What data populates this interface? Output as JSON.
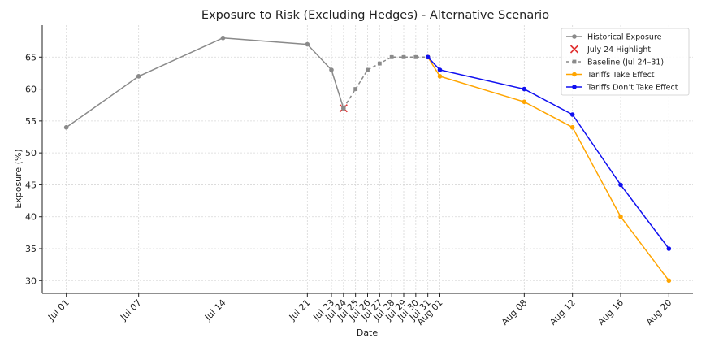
{
  "chart_data": {
    "type": "line",
    "title": "Exposure to Risk (Excluding Hedges) - Alternative Scenario",
    "xlabel": "Date",
    "ylabel": "Exposure (%)",
    "ylim": [
      28,
      70
    ],
    "xlim": [
      "2025-06-29",
      "2025-08-22"
    ],
    "grid": true,
    "legend_position": "top-right",
    "yticks": [
      30,
      35,
      40,
      45,
      50,
      55,
      60,
      65
    ],
    "xticks": [
      {
        "date": "2025-07-01",
        "label": "Jul 01"
      },
      {
        "date": "2025-07-07",
        "label": "Jul 07"
      },
      {
        "date": "2025-07-14",
        "label": "Jul 14"
      },
      {
        "date": "2025-07-21",
        "label": "Jul 21"
      },
      {
        "date": "2025-07-23",
        "label": "Jul 23"
      },
      {
        "date": "2025-07-24",
        "label": "Jul 24"
      },
      {
        "date": "2025-07-25",
        "label": "Jul 25"
      },
      {
        "date": "2025-07-26",
        "label": "Jul 26"
      },
      {
        "date": "2025-07-27",
        "label": "Jul 27"
      },
      {
        "date": "2025-07-28",
        "label": "Jul 28"
      },
      {
        "date": "2025-07-29",
        "label": "Jul 29"
      },
      {
        "date": "2025-07-30",
        "label": "Jul 30"
      },
      {
        "date": "2025-07-31",
        "label": "Jul 31"
      },
      {
        "date": "2025-08-01",
        "label": "Aug 01"
      },
      {
        "date": "2025-08-08",
        "label": "Aug 08"
      },
      {
        "date": "2025-08-12",
        "label": "Aug 12"
      },
      {
        "date": "2025-08-16",
        "label": "Aug 16"
      },
      {
        "date": "2025-08-20",
        "label": "Aug 20"
      }
    ],
    "series": [
      {
        "name": "Historical Exposure",
        "color": "#8a8a8a",
        "line_style": "solid",
        "marker": "circle",
        "points": [
          {
            "x": "2025-07-01",
            "y": 54
          },
          {
            "x": "2025-07-07",
            "y": 62
          },
          {
            "x": "2025-07-14",
            "y": 68
          },
          {
            "x": "2025-07-21",
            "y": 67
          },
          {
            "x": "2025-07-23",
            "y": 63
          },
          {
            "x": "2025-07-24",
            "y": 57
          }
        ]
      },
      {
        "name": "July 24 Highlight",
        "color": "#e03030",
        "line_style": "none",
        "marker": "x",
        "points": [
          {
            "x": "2025-07-24",
            "y": 57
          }
        ]
      },
      {
        "name": "Baseline (Jul 24–31)",
        "color": "#8a8a8a",
        "line_style": "dashed",
        "marker": "square",
        "points": [
          {
            "x": "2025-07-24",
            "y": 57
          },
          {
            "x": "2025-07-25",
            "y": 60
          },
          {
            "x": "2025-07-26",
            "y": 63
          },
          {
            "x": "2025-07-27",
            "y": 64
          },
          {
            "x": "2025-07-28",
            "y": 65
          },
          {
            "x": "2025-07-29",
            "y": 65
          },
          {
            "x": "2025-07-30",
            "y": 65
          },
          {
            "x": "2025-07-31",
            "y": 65
          }
        ]
      },
      {
        "name": "Tariffs Take Effect",
        "color": "#ffa500",
        "line_style": "solid",
        "marker": "circle",
        "points": [
          {
            "x": "2025-07-31",
            "y": 65
          },
          {
            "x": "2025-08-01",
            "y": 62
          },
          {
            "x": "2025-08-08",
            "y": 58
          },
          {
            "x": "2025-08-12",
            "y": 54
          },
          {
            "x": "2025-08-16",
            "y": 40
          },
          {
            "x": "2025-08-20",
            "y": 30
          }
        ]
      },
      {
        "name": "Tariffs Don’t Take Effect",
        "color": "#1010f0",
        "line_style": "solid",
        "marker": "circle",
        "points": [
          {
            "x": "2025-07-31",
            "y": 65
          },
          {
            "x": "2025-08-01",
            "y": 63
          },
          {
            "x": "2025-08-08",
            "y": 60
          },
          {
            "x": "2025-08-12",
            "y": 56
          },
          {
            "x": "2025-08-16",
            "y": 45
          },
          {
            "x": "2025-08-20",
            "y": 35
          }
        ]
      }
    ]
  }
}
